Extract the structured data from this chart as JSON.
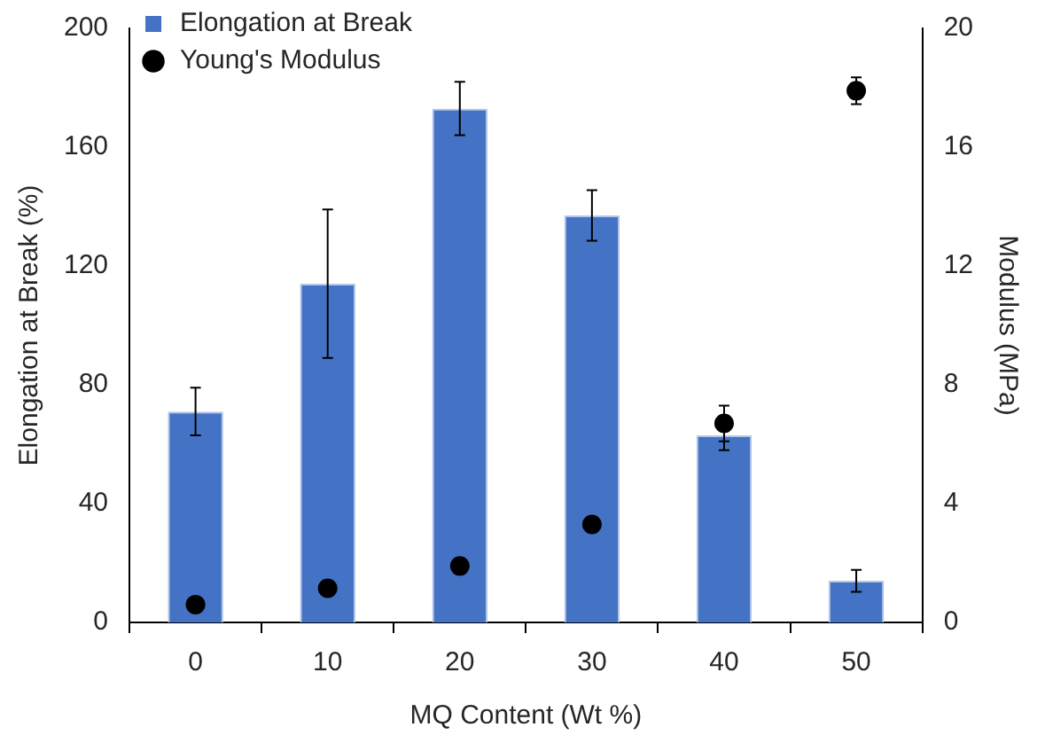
{
  "chart_data": {
    "type": "bar",
    "xlabel": "MQ Content (Wt %)",
    "ylabel": "Elongation at Break (%)",
    "y2label": "Modulus (MPa)",
    "categories": [
      "0",
      "10",
      "20",
      "30",
      "40",
      "50"
    ],
    "series": [
      {
        "name": "Elongation at Break",
        "color": "#4472c4",
        "values": [
          71,
          114,
          173,
          137,
          63,
          14
        ],
        "errors": [
          8,
          25,
          9,
          8.5,
          5,
          3.7
        ]
      },
      {
        "name": "Young's Modulus",
        "type": "scatter",
        "axis": "y2",
        "color": "#000000",
        "values": [
          0.6,
          1.15,
          1.9,
          3.3,
          6.7,
          17.9
        ],
        "errors": [
          null,
          null,
          null,
          null,
          0.6,
          0.45
        ]
      }
    ],
    "ylim": [
      0,
      200
    ],
    "yticks": [
      0,
      40,
      80,
      120,
      160,
      200
    ],
    "y2lim": [
      0,
      20
    ],
    "y2ticks": [
      0,
      4,
      8,
      12,
      16,
      20
    ],
    "grid": false,
    "legend": "top left",
    "marker": "circle"
  }
}
